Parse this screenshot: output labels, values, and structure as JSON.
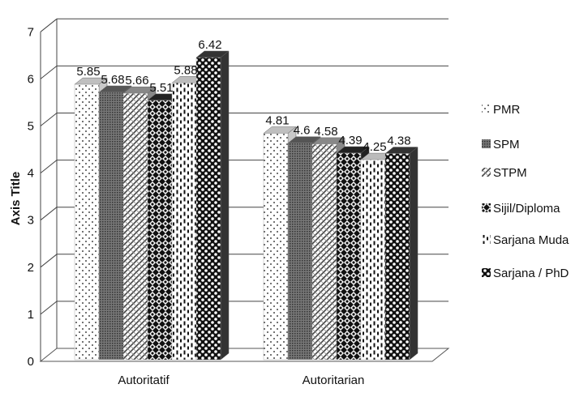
{
  "chart_data": {
    "type": "bar",
    "ylabel": "Axis Title",
    "ylim": [
      0,
      7
    ],
    "yticks": [
      "0",
      "1",
      "2",
      "3",
      "4",
      "5",
      "6",
      "7"
    ],
    "grid": true,
    "legend_position": "right",
    "categories": [
      "Autoritatif",
      "Autoritarian"
    ],
    "series": [
      {
        "name": "PMR",
        "values": [
          5.85,
          4.81
        ],
        "value_labels": [
          "5.85",
          "4.81"
        ],
        "pattern": "dots"
      },
      {
        "name": "SPM",
        "values": [
          5.68,
          4.6
        ],
        "value_labels": [
          "5.68",
          "4.6"
        ],
        "pattern": "dense"
      },
      {
        "name": "STPM",
        "values": [
          5.66,
          4.58
        ],
        "value_labels": [
          "5.66",
          "4.58"
        ],
        "pattern": "diagonal"
      },
      {
        "name": "Sijil/Diploma",
        "values": [
          5.51,
          4.39
        ],
        "value_labels": [
          "5.51",
          "4.39"
        ],
        "pattern": "checker"
      },
      {
        "name": "Sarjana Muda",
        "values": [
          5.88,
          4.25
        ],
        "value_labels": [
          "5.88",
          "4.25"
        ],
        "pattern": "dashes"
      },
      {
        "name": "Sarjana / PhD",
        "values": [
          6.42,
          4.38
        ],
        "value_labels": [
          "6.42",
          "4.38"
        ],
        "pattern": "spots"
      }
    ]
  }
}
